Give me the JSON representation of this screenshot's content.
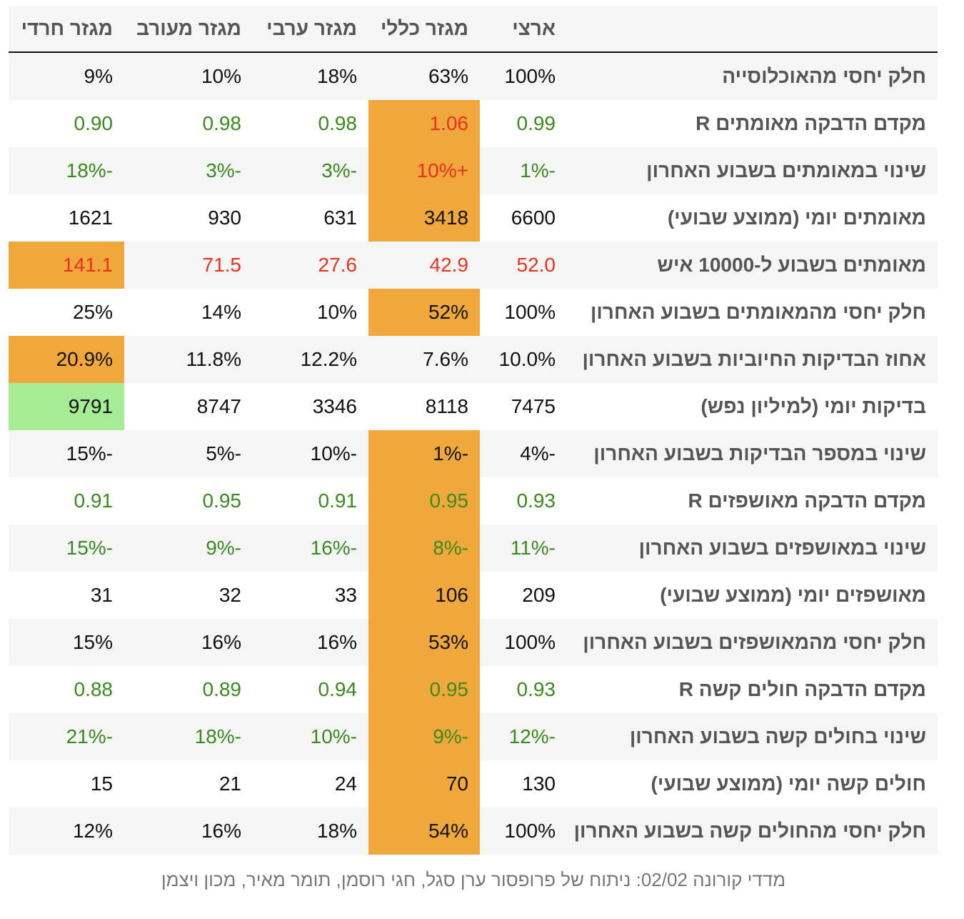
{
  "table": {
    "columns": [
      "ארצי",
      "מגזר כללי",
      "מגזר ערבי",
      "מגזר מעורב",
      "מגזר חרדי"
    ],
    "rows": [
      {
        "label": "חלק יחסי מהאוכלוסייה",
        "values": [
          "100%",
          "63%",
          "18%",
          "10%",
          "9%"
        ]
      },
      {
        "label": "מקדם הדבקה מאומתים R",
        "values": [
          "0.99",
          "1.06",
          "0.98",
          "0.98",
          "0.90"
        ]
      },
      {
        "label": "שינוי במאומתים בשבוע האחרון",
        "values": [
          "-1%",
          "+10%",
          "-3%",
          "-3%",
          "-18%"
        ]
      },
      {
        "label": "מאומתים יומי (ממוצע שבועי)",
        "values": [
          "6600",
          "3418",
          "631",
          "930",
          "1621"
        ]
      },
      {
        "label": "מאומתים בשבוע ל-10000 איש",
        "values": [
          "52.0",
          "42.9",
          "27.6",
          "71.5",
          "141.1"
        ]
      },
      {
        "label": "חלק יחסי מהמאומתים בשבוע האחרון",
        "values": [
          "100%",
          "52%",
          "10%",
          "14%",
          "25%"
        ]
      },
      {
        "label": "אחוז הבדיקות החיוביות בשבוע האחרון",
        "values": [
          "10.0%",
          "7.6%",
          "12.2%",
          "11.8%",
          "20.9%"
        ]
      },
      {
        "label": "בדיקות יומי (למיליון נפש)",
        "values": [
          "7475",
          "8118",
          "3346",
          "8747",
          "9791"
        ]
      },
      {
        "label": "שינוי במספר הבדיקות בשבוע האחרון",
        "values": [
          "-4%",
          "-1%",
          "-10%",
          "-5%",
          "-15%"
        ]
      },
      {
        "label": "מקדם הדבקה מאושפזים R",
        "values": [
          "0.93",
          "0.95",
          "0.91",
          "0.95",
          "0.91"
        ]
      },
      {
        "label": "שינוי במאושפזים בשבוע האחרון",
        "values": [
          "-11%",
          "-8%",
          "-16%",
          "-9%",
          "-15%"
        ]
      },
      {
        "label": "מאושפזים יומי (ממוצע שבועי)",
        "values": [
          "209",
          "106",
          "33",
          "32",
          "31"
        ]
      },
      {
        "label": "חלק יחסי מהמאושפזים בשבוע האחרון",
        "values": [
          "100%",
          "53%",
          "16%",
          "16%",
          "15%"
        ]
      },
      {
        "label": "מקדם הדבקה חולים קשה R",
        "values": [
          "0.93",
          "0.95",
          "0.94",
          "0.89",
          "0.88"
        ]
      },
      {
        "label": "שינוי בחולים קשה בשבוע האחרון",
        "values": [
          "-12%",
          "-9%",
          "-10%",
          "-18%",
          "-21%"
        ]
      },
      {
        "label": "חולים קשה יומי (ממוצע שבועי)",
        "values": [
          "130",
          "70",
          "24",
          "21",
          "15"
        ]
      },
      {
        "label": "חלק יחסי מהחולים קשה בשבוע האחרון",
        "values": [
          "100%",
          "54%",
          "18%",
          "16%",
          "12%"
        ]
      }
    ]
  },
  "caption": "מדדי קורונה 02/02: ניתוח של פרופסור ערן סגל, חגי רוסמן, תומר מאיר, מכון ויצמן"
}
